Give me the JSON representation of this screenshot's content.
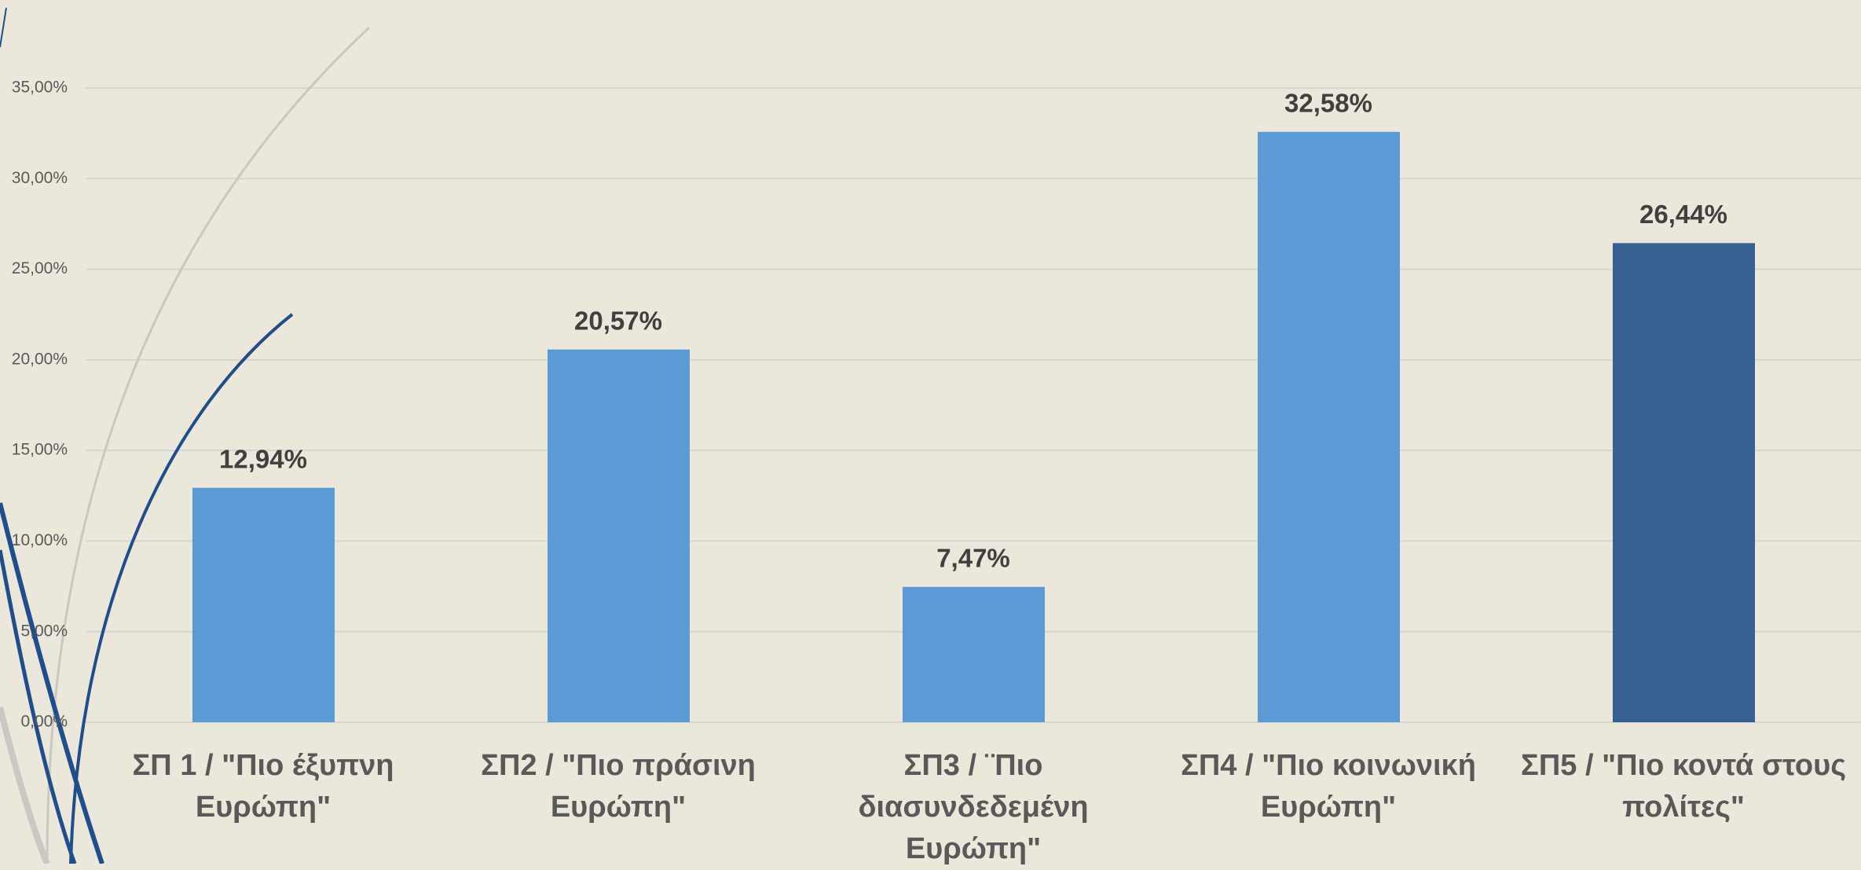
{
  "chart_data": {
    "type": "bar",
    "categories": [
      "ΣΠ 1 / \"Πιο έξυπνη Ευρώπη\"",
      "ΣΠ2 / \"Πιο πράσινη Ευρώπη\"",
      "ΣΠ3 / ¨Πιο διασυνδεδεμένη Ευρώπη\"",
      "ΣΠ4 / \"Πιο κοινωνική Ευρώπη\"",
      "ΣΠ5 / \"Πιο κοντά στους πολίτες\""
    ],
    "values": [
      12.94,
      20.57,
      7.47,
      32.58,
      26.44
    ],
    "value_labels": [
      "12,94%",
      "20,57%",
      "7,47%",
      "32,58%",
      "26,44%"
    ],
    "colors": [
      "#5b9bd5",
      "#5b9bd5",
      "#5b9bd5",
      "#5b9bd5",
      "#366092"
    ],
    "ylim": [
      0,
      35
    ],
    "yticks": [
      {
        "value": 0,
        "label": "0,00%"
      },
      {
        "value": 5,
        "label": "5,00%"
      },
      {
        "value": 10,
        "label": "10,00%"
      },
      {
        "value": 15,
        "label": "15,00%"
      },
      {
        "value": 20,
        "label": "20,00%"
      },
      {
        "value": 25,
        "label": "25,00%"
      },
      {
        "value": 30,
        "label": "30,00%"
      },
      {
        "value": 35,
        "label": "35,00%"
      }
    ],
    "grid": true
  }
}
